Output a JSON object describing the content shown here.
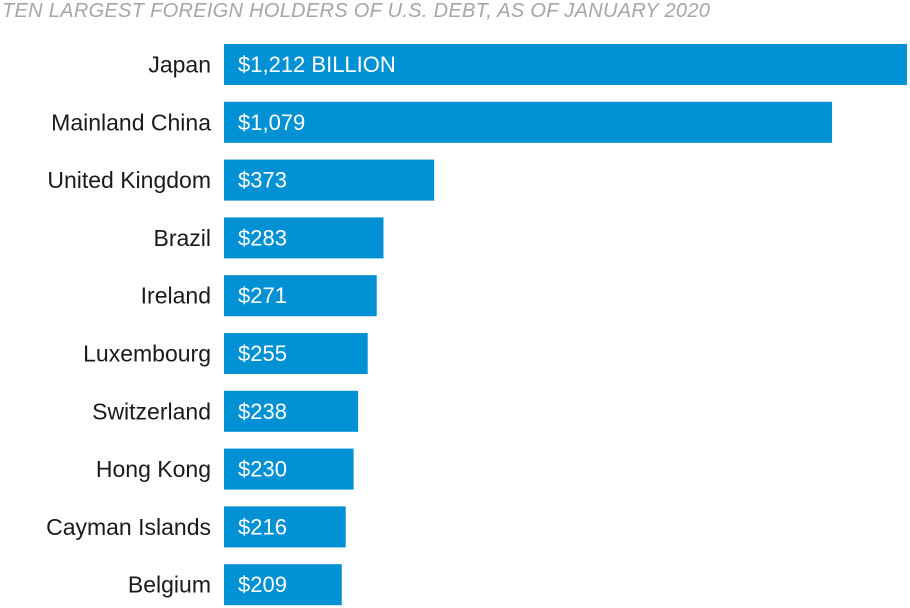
{
  "chart_data": {
    "type": "bar",
    "orientation": "horizontal",
    "title": "TEN LARGEST FOREIGN HOLDERS OF U.S. DEBT, AS OF JANUARY 2020",
    "categories": [
      "Japan",
      "Mainland China",
      "United Kingdom",
      "Brazil",
      "Ireland",
      "Luxembourg",
      "Switzerland",
      "Hong Kong",
      "Cayman Islands",
      "Belgium"
    ],
    "values": [
      1212,
      1079,
      373,
      283,
      271,
      255,
      238,
      230,
      216,
      209
    ],
    "value_labels": [
      "$1,212 BILLION",
      "$1,079",
      "$373",
      "$283",
      "$271",
      "$255",
      "$238",
      "$230",
      "$216",
      "$209"
    ],
    "xlim": [
      0,
      1212
    ],
    "grid": false,
    "legend": "none",
    "bar_color": "#0090d4",
    "label_color": "#1a1a1a",
    "title_color": "#a6a6a6"
  }
}
